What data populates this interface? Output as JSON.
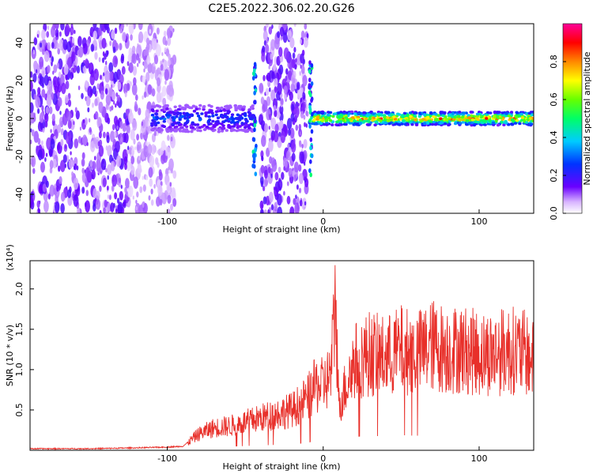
{
  "title": "C2E5.2022.306.02.20.G26",
  "chart_data": [
    {
      "type": "heatmap",
      "xlabel": "Height of straight line (km)",
      "ylabel": "Frequency (Hz)",
      "xlim": [
        -188,
        135
      ],
      "ylim": [
        -50,
        50
      ],
      "xticks": [
        -100,
        0,
        100
      ],
      "yticks": [
        -40,
        -20,
        0,
        20,
        40
      ],
      "colorbar": {
        "label": "Normalized spectral amplitude",
        "range": [
          0.0,
          1.0
        ],
        "ticks": [
          "0.0",
          "0.2",
          "0.4",
          "0.6",
          "0.8"
        ],
        "colormap": "rainbow (white–purple–blue–cyan–green–yellow–orange–red–magenta)"
      },
      "features": {
        "broadband_noise_x": [
          [
            -188,
            -95
          ],
          [
            -40,
            -10
          ]
        ],
        "signal_ridge_frequency_hz": 0,
        "ridge_strength": [
          {
            "x_range": [
              -110,
              -45
            ],
            "amplitude": 0.3
          },
          {
            "x_range": [
              -7,
              135
            ],
            "amplitude": 0.85
          }
        ],
        "spikes_x": [
          -44,
          -8
        ]
      }
    },
    {
      "type": "line",
      "xlabel": "Height of straight line (km)",
      "ylabel": "SNR (10 * v/v)",
      "multiplier": "(x10⁴)",
      "xlim": [
        -188,
        135
      ],
      "ylim": [
        0,
        2.35
      ],
      "xticks": [
        -100,
        0,
        100
      ],
      "yticks": [
        "0.5",
        "1.0",
        "1.5",
        "2.0"
      ],
      "color": "#e8302a",
      "series": [
        {
          "x": [
            -188,
            -150,
            -120,
            -100,
            -90,
            -80,
            -70,
            -60,
            -50,
            -40,
            -30,
            -20,
            -10,
            -5,
            0,
            5,
            8,
            10,
            20,
            30,
            40,
            50,
            60,
            70,
            80,
            90,
            100,
            110,
            120,
            130,
            135
          ],
          "values": [
            0.02,
            0.02,
            0.03,
            0.04,
            0.05,
            0.2,
            0.28,
            0.3,
            0.35,
            0.4,
            0.45,
            0.5,
            0.65,
            0.8,
            0.8,
            0.95,
            1.9,
            0.55,
            1.1,
            1.2,
            1.15,
            1.25,
            1.2,
            1.3,
            1.25,
            1.25,
            1.2,
            1.2,
            1.25,
            1.2,
            1.1
          ]
        }
      ]
    }
  ]
}
